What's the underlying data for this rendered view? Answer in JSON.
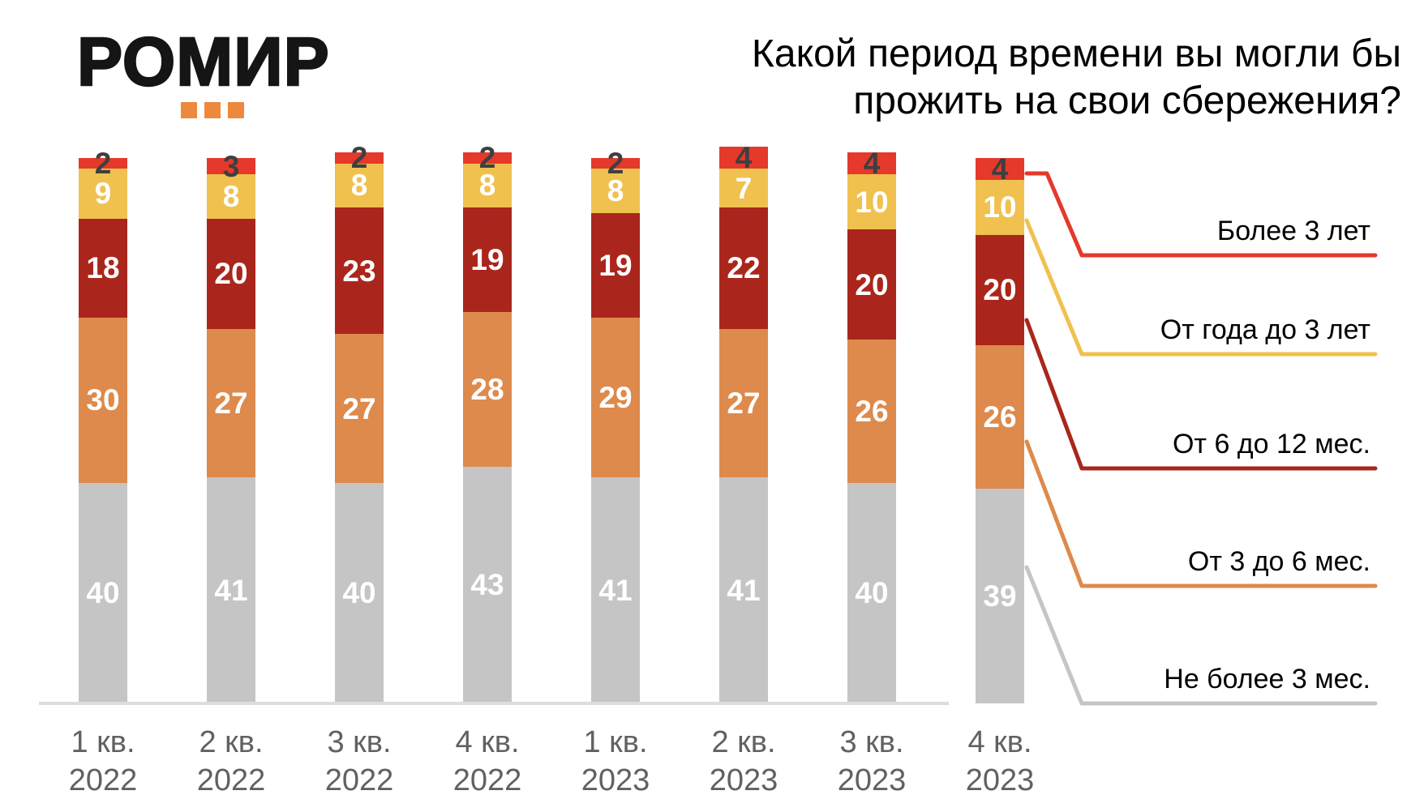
{
  "logo": {
    "text": "РОМИР",
    "accent_color": "#EE883C"
  },
  "title": {
    "line1": "Какой период времени вы могли бы",
    "line2": "прожить на свои сбережения?"
  },
  "chart_data": {
    "type": "bar",
    "stacked": true,
    "title": "Какой период времени вы могли бы прожить на свои сбережения?",
    "categories": [
      "1 кв. 2022",
      "2 кв. 2022",
      "3 кв. 2022",
      "4 кв. 2022",
      "1 кв. 2023",
      "2 кв. 2023",
      "3 кв. 2023",
      "4 кв. 2023"
    ],
    "category_lines": [
      [
        "1 кв.",
        "2022"
      ],
      [
        "2 кв.",
        "2022"
      ],
      [
        "3 кв.",
        "2022"
      ],
      [
        "4 кв.",
        "2022"
      ],
      [
        "1 кв.",
        "2023"
      ],
      [
        "2 кв.",
        "2023"
      ],
      [
        "3 кв.",
        "2023"
      ],
      [
        "4 кв.",
        "2023"
      ]
    ],
    "series": [
      {
        "name": "Более 3 лет",
        "color": "#E4392B",
        "values": [
          2,
          3,
          2,
          2,
          2,
          4,
          4,
          4
        ]
      },
      {
        "name": "От года до 3 лет",
        "color": "#F0C14E",
        "values": [
          9,
          8,
          8,
          8,
          8,
          7,
          10,
          10
        ]
      },
      {
        "name": "От 6 до 12 мес.",
        "color": "#AA261C",
        "values": [
          18,
          20,
          23,
          19,
          19,
          22,
          20,
          20
        ]
      },
      {
        "name": "От 3 до 6 мес.",
        "color": "#DD8A4C",
        "values": [
          30,
          27,
          27,
          28,
          29,
          27,
          26,
          26
        ]
      },
      {
        "name": "Не более 3 мес.",
        "color": "#C5C5C5",
        "values": [
          40,
          41,
          40,
          43,
          41,
          41,
          40,
          39
        ]
      }
    ],
    "stack_order": "top-to-bottom",
    "value_label_color_inside": "#FFFFFF",
    "top_value_label_color": "#3F3F3F",
    "x_label_color": "#616161",
    "axis_line_color": "#DDDDDD",
    "legend_position": "right-callouts",
    "ylim": [
      0,
      101
    ]
  }
}
